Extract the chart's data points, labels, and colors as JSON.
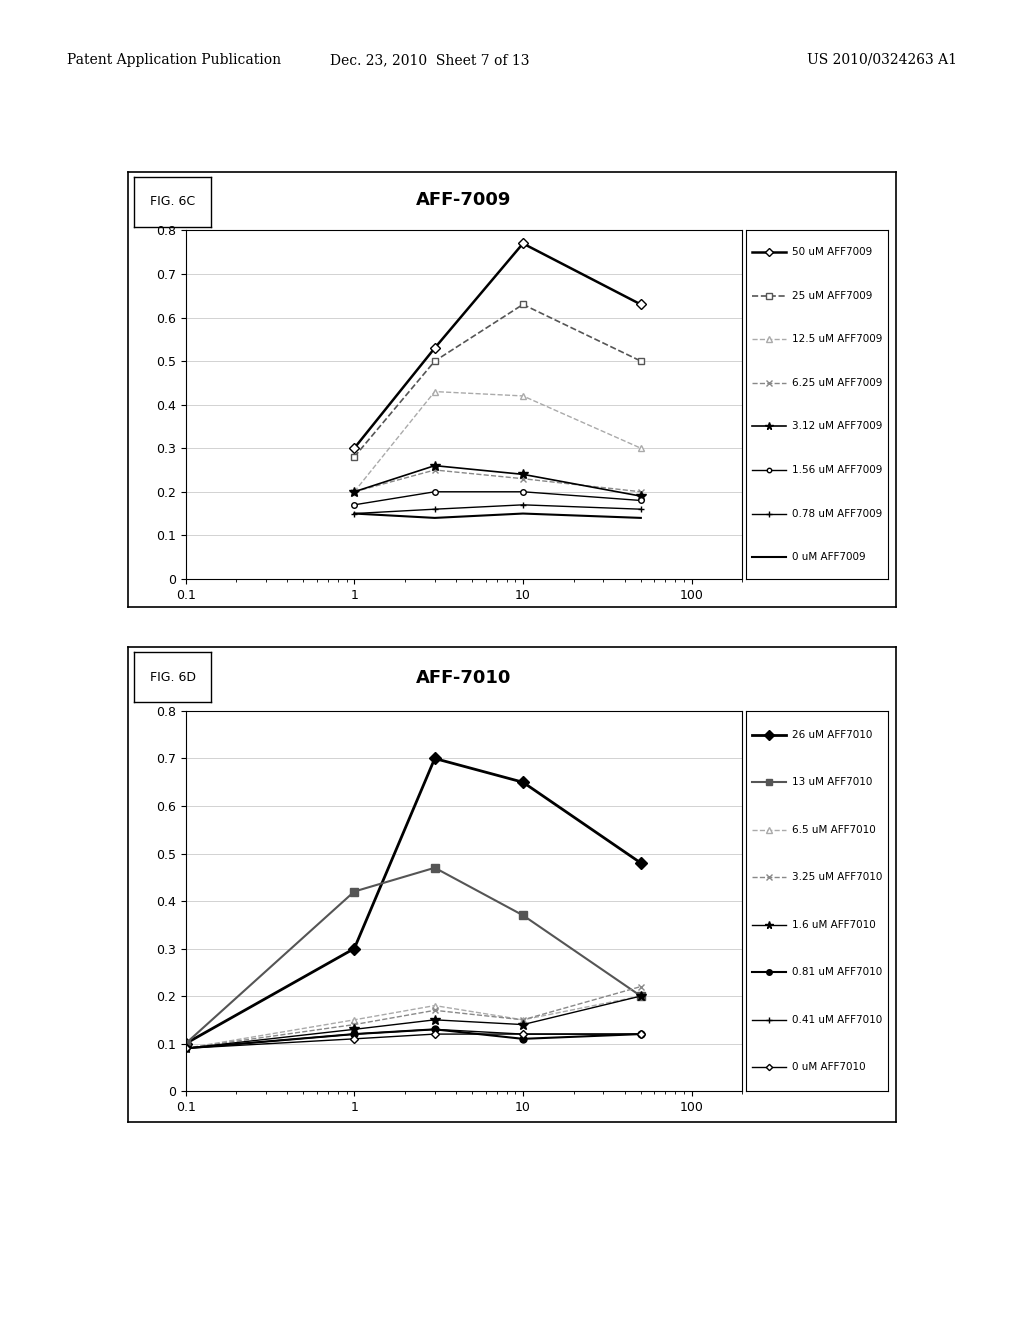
{
  "fig6c": {
    "title": "AFF-7009",
    "fig_label": "FIG. 6C",
    "x": [
      1,
      3,
      10,
      50
    ],
    "series": [
      {
        "label": "50 uM AFF7009",
        "values": [
          0.3,
          0.53,
          0.77,
          0.63
        ],
        "color": "#000000",
        "marker": "D",
        "markersize": 5,
        "linewidth": 1.8,
        "linestyle": "-",
        "markerfacecolor": "white"
      },
      {
        "label": "25 uM AFF7009",
        "values": [
          0.28,
          0.5,
          0.63,
          0.5
        ],
        "color": "#555555",
        "marker": "s",
        "markersize": 5,
        "linewidth": 1.2,
        "linestyle": "--",
        "markerfacecolor": "white"
      },
      {
        "label": "12.5 uM AFF7009",
        "values": [
          0.2,
          0.43,
          0.42,
          0.3
        ],
        "color": "#aaaaaa",
        "marker": "^",
        "markersize": 5,
        "linewidth": 1.0,
        "linestyle": "--",
        "markerfacecolor": "white"
      },
      {
        "label": "6.25 uM AFF7009",
        "values": [
          0.2,
          0.25,
          0.23,
          0.2
        ],
        "color": "#888888",
        "marker": "x",
        "markersize": 5,
        "linewidth": 1.0,
        "linestyle": "--",
        "markerfacecolor": "#888888"
      },
      {
        "label": "3.12 uM AFF7009",
        "values": [
          0.2,
          0.26,
          0.24,
          0.19
        ],
        "color": "#000000",
        "marker": "*",
        "markersize": 7,
        "linewidth": 1.2,
        "linestyle": "-",
        "markerfacecolor": "#000000"
      },
      {
        "label": "1.56 uM AFF7009",
        "values": [
          0.17,
          0.2,
          0.2,
          0.18
        ],
        "color": "#000000",
        "marker": "o",
        "markersize": 4,
        "linewidth": 1.0,
        "linestyle": "-",
        "markerfacecolor": "white"
      },
      {
        "label": "0.78 uM AFF7009",
        "values": [
          0.15,
          0.16,
          0.17,
          0.16
        ],
        "color": "#000000",
        "marker": "+",
        "markersize": 5,
        "linewidth": 1.0,
        "linestyle": "-",
        "markerfacecolor": "#000000"
      },
      {
        "label": "0 uM AFF7009",
        "values": [
          0.15,
          0.14,
          0.15,
          0.14
        ],
        "color": "#000000",
        "marker": null,
        "markersize": 4,
        "linewidth": 1.5,
        "linestyle": "-",
        "markerfacecolor": "#000000"
      }
    ],
    "ylim": [
      0,
      0.8
    ],
    "yticks": [
      0,
      0.1,
      0.2,
      0.3,
      0.4,
      0.5,
      0.6,
      0.7,
      0.8
    ],
    "xlim": [
      0.1,
      100
    ]
  },
  "fig6d": {
    "title": "AFF-7010",
    "fig_label": "FIG. 6D",
    "x": [
      0.1,
      1,
      3,
      10,
      50
    ],
    "series": [
      {
        "label": "26 uM AFF7010",
        "values": [
          0.1,
          0.3,
          0.7,
          0.65,
          0.48
        ],
        "color": "#000000",
        "marker": "D",
        "markersize": 6,
        "linewidth": 2.0,
        "linestyle": "-",
        "markerfacecolor": "#000000"
      },
      {
        "label": "13 uM AFF7010",
        "values": [
          0.1,
          0.42,
          0.47,
          0.37,
          0.2
        ],
        "color": "#555555",
        "marker": "s",
        "markersize": 6,
        "linewidth": 1.5,
        "linestyle": "-",
        "markerfacecolor": "#555555"
      },
      {
        "label": "6.5 uM AFF7010",
        "values": [
          0.09,
          0.15,
          0.18,
          0.15,
          0.2
        ],
        "color": "#aaaaaa",
        "marker": "^",
        "markersize": 5,
        "linewidth": 1.0,
        "linestyle": "--",
        "markerfacecolor": "white"
      },
      {
        "label": "3.25 uM AFF7010",
        "values": [
          0.09,
          0.14,
          0.17,
          0.15,
          0.22
        ],
        "color": "#888888",
        "marker": "x",
        "markersize": 5,
        "linewidth": 1.0,
        "linestyle": "--",
        "markerfacecolor": "#888888"
      },
      {
        "label": "1.6 uM AFF7010",
        "values": [
          0.09,
          0.13,
          0.15,
          0.14,
          0.2
        ],
        "color": "#000000",
        "marker": "*",
        "markersize": 7,
        "linewidth": 1.0,
        "linestyle": "-",
        "markerfacecolor": "#000000"
      },
      {
        "label": "0.81 uM AFF7010",
        "values": [
          0.09,
          0.12,
          0.13,
          0.11,
          0.12
        ],
        "color": "#000000",
        "marker": "o",
        "markersize": 5,
        "linewidth": 1.5,
        "linestyle": "-",
        "markerfacecolor": "#000000"
      },
      {
        "label": "0.41 uM AFF7010",
        "values": [
          0.09,
          0.12,
          0.13,
          0.12,
          0.12
        ],
        "color": "#000000",
        "marker": "+",
        "markersize": 5,
        "linewidth": 1.0,
        "linestyle": "-",
        "markerfacecolor": "#000000"
      },
      {
        "label": "0 uM AFF7010",
        "values": [
          0.09,
          0.11,
          0.12,
          0.12,
          0.12
        ],
        "color": "#000000",
        "marker": "D",
        "markersize": 4,
        "linewidth": 1.0,
        "linestyle": "-",
        "markerfacecolor": "white"
      }
    ],
    "ylim": [
      0,
      0.8
    ],
    "yticks": [
      0,
      0.1,
      0.2,
      0.3,
      0.4,
      0.5,
      0.6,
      0.7,
      0.8
    ],
    "xlim": [
      0.1,
      100
    ]
  },
  "header_left": "Patent Application Publication",
  "header_center": "Dec. 23, 2010  Sheet 7 of 13",
  "header_right": "US 2010/0324263 A1",
  "background_color": "#ffffff"
}
